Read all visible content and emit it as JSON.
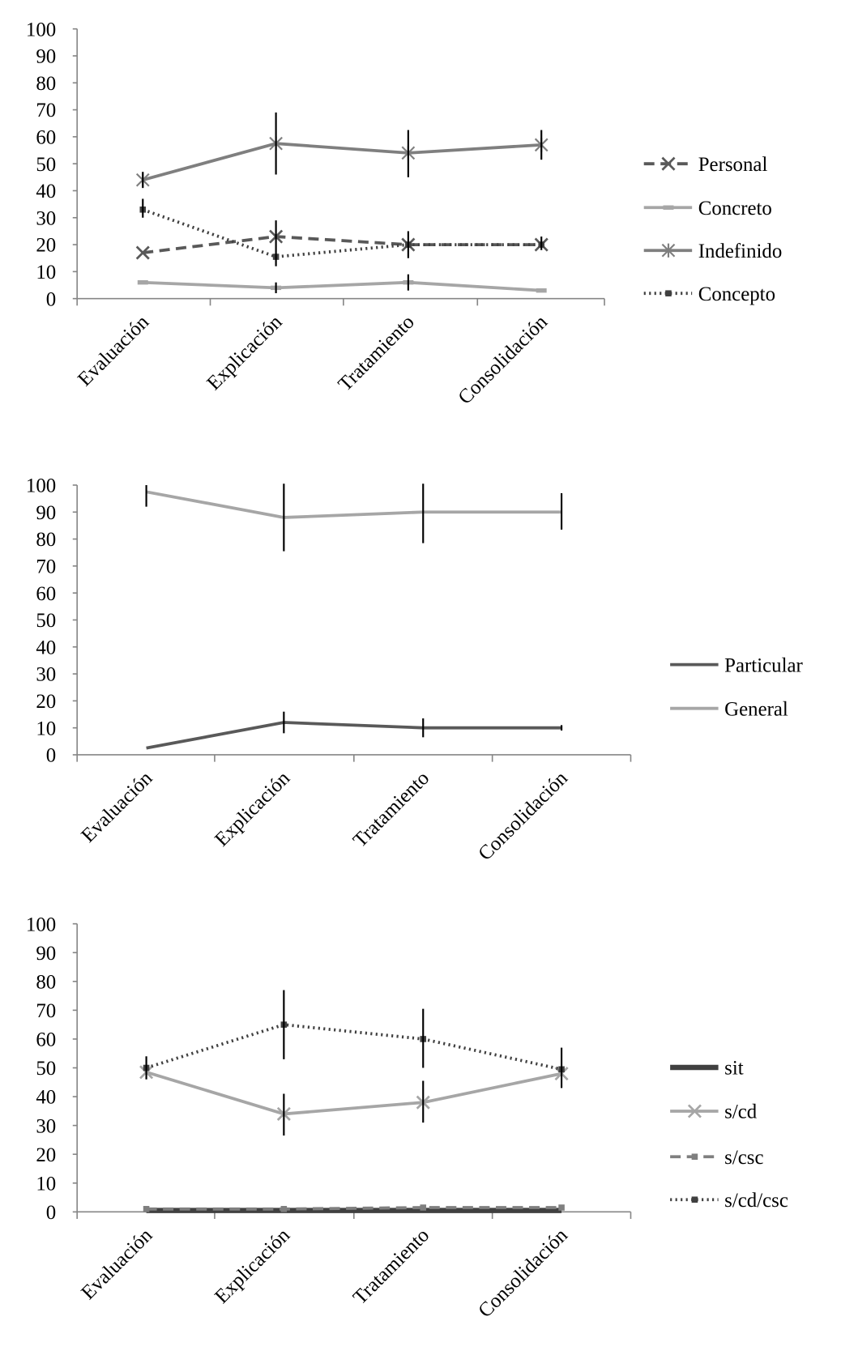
{
  "chart_data": [
    {
      "type": "line",
      "categories": [
        "Evaluación",
        "Explicación",
        "Tratamiento",
        "Consolidación"
      ],
      "ylim": [
        0,
        100
      ],
      "yticks": [
        0,
        10,
        20,
        30,
        40,
        50,
        60,
        70,
        80,
        90,
        100
      ],
      "grid": false,
      "legend": "right",
      "series": [
        {
          "name": "Personal",
          "values": [
            17,
            23,
            20,
            20
          ],
          "error": [
            null,
            [
              12,
              29
            ],
            [
              15,
              25
            ],
            [
              18,
              23
            ]
          ],
          "color": "#595959",
          "dash": "dashed",
          "marker": "x"
        },
        {
          "name": "Concreto",
          "values": [
            6,
            4,
            6,
            3
          ],
          "error": [
            null,
            [
              2,
              6
            ],
            [
              3,
              9
            ],
            null
          ],
          "color": "#a6a6a6",
          "dash": "solid",
          "marker": "dash"
        },
        {
          "name": "Indefinido",
          "values": [
            44,
            57.5,
            54,
            57
          ],
          "error": [
            [
              41,
              47
            ],
            [
              46,
              69
            ],
            [
              45,
              62.5
            ],
            [
              51.5,
              62.5
            ]
          ],
          "color": "#7f7f7f",
          "dash": "solid",
          "marker": "star"
        },
        {
          "name": "Concepto",
          "values": [
            33,
            15.5,
            20,
            20
          ],
          "error": [
            [
              30,
              37
            ],
            null,
            null,
            null
          ],
          "color": "#404040",
          "dash": "dotted",
          "marker": "square"
        }
      ]
    },
    {
      "type": "line",
      "categories": [
        "Evaluación",
        "Explicación",
        "Tratamiento",
        "Consolidación"
      ],
      "ylim": [
        0,
        100
      ],
      "yticks": [
        0,
        10,
        20,
        30,
        40,
        50,
        60,
        70,
        80,
        90,
        100
      ],
      "grid": false,
      "legend": "right",
      "series": [
        {
          "name": "Particular",
          "values": [
            2.5,
            12,
            10,
            10
          ],
          "error": [
            null,
            [
              8,
              16
            ],
            [
              6.5,
              13.5
            ],
            [
              9,
              11
            ]
          ],
          "color": "#595959",
          "dash": "solid",
          "marker": "none"
        },
        {
          "name": "General",
          "values": [
            97.5,
            88,
            90,
            90
          ],
          "error": [
            [
              92,
              100
            ],
            [
              75.5,
              100.5
            ],
            [
              78.5,
              100.5
            ],
            [
              83.5,
              97
            ]
          ],
          "color": "#a6a6a6",
          "dash": "solid",
          "marker": "none"
        }
      ]
    },
    {
      "type": "line",
      "categories": [
        "Evaluación",
        "Explicación",
        "Tratamiento",
        "Consolidación"
      ],
      "ylim": [
        0,
        100
      ],
      "yticks": [
        0,
        10,
        20,
        30,
        40,
        50,
        60,
        70,
        80,
        90,
        100
      ],
      "grid": false,
      "legend": "right",
      "series": [
        {
          "name": "sit",
          "values": [
            0.5,
            0.5,
            0.5,
            0.5
          ],
          "error": [
            null,
            null,
            null,
            null
          ],
          "color": "#404040",
          "dash": "thick",
          "marker": "none"
        },
        {
          "name": "s/cd",
          "values": [
            48.5,
            34,
            38,
            48
          ],
          "error": [
            null,
            [
              26.5,
              41
            ],
            [
              31,
              45.5
            ],
            null
          ],
          "color": "#a6a6a6",
          "dash": "solid",
          "marker": "x"
        },
        {
          "name": "s/csc",
          "values": [
            1,
            1,
            1.5,
            1.5
          ],
          "error": [
            null,
            null,
            null,
            null
          ],
          "color": "#7f7f7f",
          "dash": "dashed",
          "marker": "square"
        },
        {
          "name": "s/cd/csc",
          "values": [
            50,
            65,
            60,
            49.5
          ],
          "error": [
            [
              46,
              54
            ],
            [
              53,
              77
            ],
            [
              50,
              70.5
            ],
            [
              43,
              57
            ]
          ],
          "color": "#404040",
          "dash": "dotted",
          "marker": "square"
        }
      ]
    }
  ]
}
